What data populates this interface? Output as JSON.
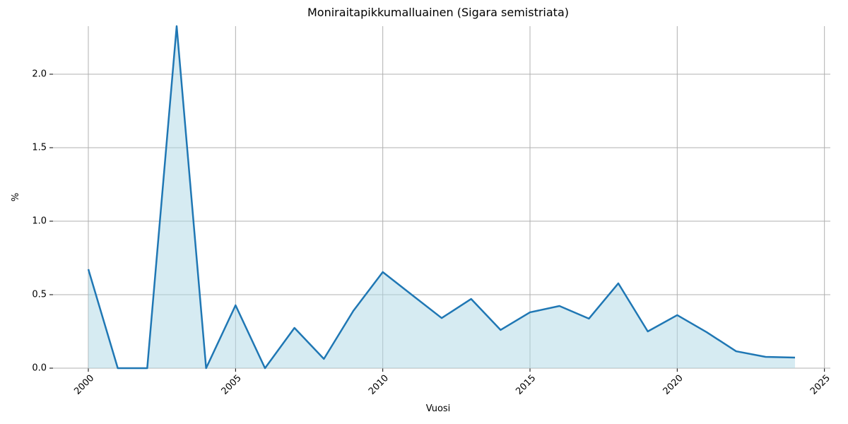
{
  "chart_data": {
    "type": "line",
    "title": "Moniraitapikkumalluainen (Sigara semistriata)",
    "xlabel": "Vuosi",
    "ylabel": "%",
    "x": [
      2000,
      2001,
      2002,
      2003,
      2004,
      2005,
      2006,
      2007,
      2008,
      2009,
      2010,
      2011,
      2012,
      2013,
      2014,
      2015,
      2016,
      2017,
      2018,
      2019,
      2020,
      2021,
      2022,
      2023,
      2024
    ],
    "series": [
      {
        "name": "%",
        "color": "#1f77b4",
        "fill": "#add8e6",
        "values": [
          0.673,
          0,
          0,
          2.327,
          0,
          0.428,
          0,
          0.274,
          0.063,
          0.39,
          0.654,
          0.497,
          0.341,
          0.471,
          0.26,
          0.38,
          0.423,
          0.337,
          0.577,
          0.25,
          0.361,
          0.245,
          0.115,
          0.077,
          0.072
        ]
      }
    ],
    "xlim": [
      1998.8,
      2025.2
    ],
    "ylim": [
      0,
      2.327
    ],
    "xticks": [
      2000,
      2005,
      2010,
      2015,
      2020,
      2025
    ],
    "yticks": [
      {
        "value": 0,
        "label": "0.0"
      },
      0.5,
      {
        "value": 1,
        "label": "1.0"
      },
      1.5,
      {
        "value": 2,
        "label": "2.0"
      }
    ],
    "grid": true
  }
}
